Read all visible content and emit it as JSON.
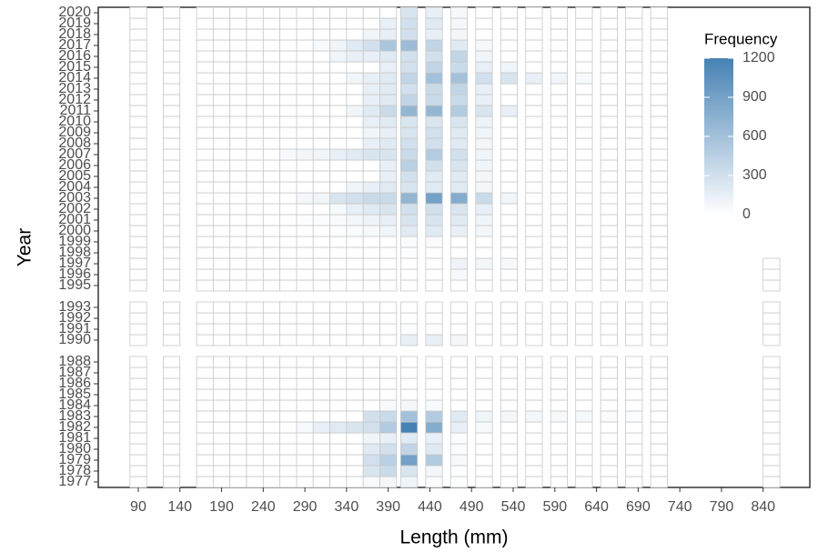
{
  "chart_data": {
    "type": "heatmap",
    "x_label": "Length (mm)",
    "y_label": "Year",
    "legend_title": "Frequency",
    "x": [
      90,
      130,
      170,
      190,
      210,
      230,
      250,
      270,
      290,
      310,
      330,
      350,
      370,
      390,
      415,
      445,
      475,
      505,
      535,
      565,
      595,
      625,
      655,
      685,
      715,
      850
    ],
    "y": [
      1977,
      1978,
      1979,
      1980,
      1981,
      1982,
      1983,
      1984,
      1985,
      1986,
      1987,
      1988,
      1990,
      1991,
      1992,
      1993,
      1995,
      1996,
      1997,
      1998,
      1999,
      2000,
      2001,
      2002,
      2003,
      2004,
      2005,
      2006,
      2007,
      2008,
      2009,
      2010,
      2011,
      2012,
      2013,
      2014,
      2015,
      2016,
      2017,
      2018,
      2019,
      2020
    ],
    "z": [
      [
        0,
        0,
        0,
        0,
        0,
        0,
        0,
        0,
        0,
        0,
        0,
        0,
        50,
        80,
        100,
        40,
        10,
        0,
        0,
        0,
        0,
        0,
        0,
        0,
        0,
        0
      ],
      [
        0,
        0,
        0,
        0,
        0,
        0,
        0,
        0,
        0,
        0,
        0,
        0,
        250,
        350,
        250,
        80,
        20,
        0,
        0,
        0,
        0,
        0,
        0,
        0,
        0,
        0
      ],
      [
        0,
        0,
        0,
        0,
        0,
        0,
        0,
        0,
        0,
        0,
        0,
        0,
        300,
        450,
        900,
        500,
        60,
        0,
        0,
        0,
        0,
        0,
        0,
        0,
        0,
        0
      ],
      [
        0,
        0,
        0,
        0,
        0,
        0,
        0,
        0,
        0,
        0,
        0,
        0,
        200,
        300,
        400,
        200,
        40,
        0,
        0,
        0,
        0,
        0,
        0,
        0,
        0,
        0
      ],
      [
        0,
        0,
        0,
        0,
        0,
        0,
        0,
        0,
        0,
        0,
        0,
        0,
        100,
        150,
        200,
        150,
        30,
        0,
        0,
        0,
        0,
        0,
        0,
        0,
        0,
        0
      ],
      [
        0,
        0,
        0,
        0,
        0,
        0,
        0,
        0,
        50,
        150,
        200,
        250,
        300,
        500,
        1200,
        800,
        150,
        50,
        0,
        0,
        0,
        0,
        0,
        0,
        0,
        0
      ],
      [
        0,
        0,
        0,
        0,
        0,
        0,
        0,
        0,
        0,
        0,
        0,
        0,
        300,
        350,
        600,
        500,
        200,
        100,
        80,
        80,
        60,
        60,
        40,
        30,
        0,
        0
      ],
      [
        0,
        0,
        0,
        0,
        0,
        0,
        0,
        0,
        0,
        0,
        0,
        0,
        0,
        50,
        80,
        50,
        0,
        0,
        0,
        0,
        0,
        0,
        0,
        0,
        0,
        0
      ],
      [
        0,
        0,
        0,
        0,
        0,
        0,
        0,
        0,
        0,
        0,
        0,
        0,
        0,
        0,
        0,
        0,
        0,
        0,
        0,
        0,
        0,
        0,
        0,
        0,
        0,
        0
      ],
      [
        0,
        0,
        0,
        0,
        0,
        0,
        0,
        0,
        0,
        0,
        0,
        0,
        0,
        0,
        0,
        0,
        0,
        0,
        0,
        0,
        0,
        0,
        0,
        0,
        0,
        0
      ],
      [
        0,
        0,
        0,
        0,
        0,
        0,
        0,
        0,
        0,
        0,
        0,
        0,
        0,
        0,
        0,
        0,
        0,
        0,
        0,
        0,
        0,
        0,
        0,
        0,
        0,
        0
      ],
      [
        0,
        0,
        0,
        0,
        0,
        0,
        0,
        0,
        0,
        0,
        0,
        0,
        0,
        0,
        0,
        0,
        0,
        0,
        0,
        0,
        0,
        0,
        0,
        0,
        0,
        0
      ],
      [
        0,
        0,
        0,
        0,
        0,
        0,
        0,
        0,
        0,
        0,
        0,
        0,
        0,
        0,
        150,
        150,
        80,
        0,
        0,
        0,
        0,
        0,
        0,
        0,
        0,
        0
      ],
      [
        0,
        0,
        0,
        0,
        0,
        0,
        0,
        0,
        0,
        0,
        0,
        0,
        0,
        0,
        20,
        20,
        0,
        0,
        0,
        0,
        0,
        0,
        0,
        0,
        0,
        0
      ],
      [
        0,
        0,
        0,
        0,
        0,
        0,
        0,
        0,
        0,
        0,
        0,
        0,
        0,
        0,
        0,
        0,
        0,
        0,
        0,
        0,
        0,
        0,
        0,
        0,
        0,
        0
      ],
      [
        0,
        0,
        0,
        0,
        0,
        0,
        0,
        0,
        0,
        0,
        0,
        0,
        0,
        0,
        0,
        0,
        0,
        0,
        0,
        0,
        0,
        0,
        0,
        0,
        0,
        0
      ],
      [
        0,
        0,
        0,
        0,
        0,
        0,
        0,
        0,
        0,
        0,
        0,
        0,
        0,
        0,
        0,
        0,
        0,
        0,
        0,
        0,
        0,
        0,
        0,
        0,
        0,
        0
      ],
      [
        0,
        0,
        0,
        0,
        0,
        0,
        0,
        0,
        0,
        0,
        0,
        0,
        0,
        0,
        0,
        0,
        60,
        0,
        0,
        0,
        0,
        0,
        0,
        0,
        0,
        0
      ],
      [
        0,
        0,
        0,
        0,
        0,
        0,
        0,
        0,
        0,
        0,
        0,
        0,
        0,
        0,
        0,
        0,
        120,
        80,
        60,
        0,
        0,
        0,
        0,
        0,
        0,
        0
      ],
      [
        0,
        0,
        0,
        0,
        0,
        0,
        0,
        0,
        0,
        0,
        0,
        0,
        0,
        0,
        20,
        0,
        0,
        0,
        0,
        0,
        0,
        0,
        0,
        0,
        0,
        null
      ],
      [
        0,
        0,
        0,
        0,
        0,
        0,
        0,
        0,
        0,
        0,
        0,
        0,
        0,
        0,
        40,
        40,
        0,
        0,
        0,
        0,
        0,
        0,
        0,
        0,
        0,
        null
      ],
      [
        0,
        0,
        0,
        0,
        0,
        0,
        0,
        0,
        0,
        0,
        20,
        40,
        60,
        100,
        200,
        200,
        150,
        80,
        0,
        0,
        0,
        0,
        0,
        0,
        0,
        null
      ],
      [
        0,
        0,
        0,
        0,
        0,
        0,
        0,
        0,
        20,
        30,
        40,
        80,
        120,
        150,
        250,
        250,
        200,
        100,
        0,
        0,
        0,
        0,
        0,
        0,
        0,
        null
      ],
      [
        0,
        0,
        0,
        0,
        0,
        0,
        0,
        0,
        0,
        0,
        60,
        150,
        200,
        250,
        300,
        300,
        250,
        150,
        0,
        0,
        0,
        0,
        0,
        0,
        0,
        null
      ],
      [
        0,
        0,
        0,
        0,
        0,
        0,
        0,
        0,
        80,
        100,
        250,
        300,
        350,
        350,
        700,
        900,
        800,
        350,
        100,
        0,
        0,
        0,
        0,
        0,
        0,
        null
      ],
      [
        0,
        0,
        0,
        0,
        0,
        0,
        0,
        0,
        0,
        0,
        0,
        100,
        150,
        200,
        250,
        200,
        200,
        80,
        0,
        0,
        0,
        0,
        0,
        0,
        0,
        null
      ],
      [
        0,
        0,
        0,
        0,
        0,
        0,
        0,
        0,
        0,
        0,
        0,
        0,
        0,
        150,
        300,
        200,
        200,
        80,
        0,
        0,
        0,
        0,
        0,
        0,
        0,
        null
      ],
      [
        0,
        0,
        0,
        0,
        0,
        0,
        0,
        0,
        0,
        0,
        0,
        0,
        0,
        150,
        450,
        300,
        250,
        100,
        0,
        0,
        0,
        0,
        0,
        0,
        0,
        null
      ],
      [
        0,
        0,
        0,
        0,
        0,
        0,
        0,
        50,
        80,
        100,
        150,
        200,
        250,
        250,
        350,
        500,
        300,
        100,
        0,
        0,
        0,
        0,
        0,
        0,
        0,
        null
      ],
      [
        0,
        0,
        0,
        0,
        0,
        0,
        0,
        0,
        0,
        0,
        0,
        0,
        150,
        200,
        300,
        300,
        200,
        80,
        0,
        0,
        0,
        0,
        0,
        0,
        0,
        null
      ],
      [
        0,
        0,
        0,
        0,
        0,
        0,
        0,
        0,
        0,
        0,
        0,
        0,
        100,
        150,
        250,
        300,
        200,
        100,
        0,
        0,
        0,
        0,
        0,
        0,
        0,
        null
      ],
      [
        0,
        0,
        0,
        0,
        0,
        0,
        0,
        0,
        0,
        0,
        0,
        0,
        150,
        200,
        250,
        250,
        250,
        120,
        0,
        0,
        0,
        0,
        0,
        0,
        0,
        null
      ],
      [
        0,
        0,
        0,
        0,
        0,
        0,
        0,
        0,
        0,
        0,
        0,
        100,
        200,
        350,
        700,
        700,
        500,
        250,
        150,
        0,
        0,
        0,
        0,
        0,
        0,
        null
      ],
      [
        0,
        0,
        0,
        0,
        0,
        0,
        0,
        0,
        0,
        0,
        0,
        0,
        150,
        200,
        400,
        350,
        350,
        150,
        0,
        0,
        0,
        0,
        0,
        0,
        0,
        null
      ],
      [
        0,
        0,
        0,
        0,
        0,
        0,
        0,
        0,
        0,
        0,
        0,
        0,
        150,
        200,
        300,
        350,
        400,
        150,
        0,
        0,
        0,
        0,
        0,
        0,
        0,
        null
      ],
      [
        0,
        0,
        0,
        0,
        0,
        0,
        0,
        0,
        0,
        0,
        0,
        100,
        150,
        200,
        400,
        600,
        600,
        300,
        250,
        150,
        100,
        50,
        0,
        0,
        0,
        null
      ],
      [
        0,
        0,
        0,
        0,
        0,
        0,
        0,
        0,
        0,
        0,
        0,
        0,
        0,
        150,
        300,
        400,
        350,
        150,
        100,
        0,
        0,
        0,
        0,
        0,
        0,
        null
      ],
      [
        0,
        0,
        0,
        0,
        0,
        0,
        0,
        0,
        0,
        0,
        100,
        150,
        150,
        200,
        300,
        300,
        400,
        100,
        0,
        0,
        0,
        0,
        0,
        0,
        0,
        null
      ],
      [
        0,
        0,
        0,
        0,
        0,
        0,
        0,
        0,
        0,
        50,
        100,
        200,
        300,
        550,
        650,
        400,
        200,
        60,
        0,
        0,
        0,
        0,
        0,
        0,
        0,
        null
      ],
      [
        0,
        0,
        0,
        0,
        0,
        0,
        0,
        0,
        0,
        0,
        0,
        0,
        100,
        150,
        300,
        150,
        80,
        0,
        0,
        0,
        0,
        0,
        0,
        0,
        0,
        null
      ],
      [
        0,
        0,
        0,
        0,
        0,
        0,
        0,
        0,
        0,
        0,
        0,
        0,
        0,
        150,
        300,
        200,
        80,
        0,
        0,
        0,
        0,
        0,
        0,
        0,
        0,
        null
      ],
      [
        0,
        0,
        0,
        0,
        0,
        0,
        0,
        0,
        0,
        0,
        0,
        0,
        0,
        0,
        250,
        150,
        60,
        0,
        0,
        0,
        0,
        0,
        0,
        0,
        0,
        null
      ]
    ],
    "cell_width": 20,
    "xlim": [
      42,
      896
    ],
    "xticks": [
      90,
      140,
      190,
      240,
      290,
      340,
      390,
      440,
      490,
      540,
      590,
      640,
      690,
      740,
      790,
      840
    ],
    "ylim": [
      1976.5,
      2020.5
    ],
    "yticks": [
      1977,
      1978,
      1979,
      1980,
      1981,
      1982,
      1983,
      1984,
      1985,
      1986,
      1987,
      1988,
      1990,
      1991,
      1992,
      1993,
      1995,
      1996,
      1997,
      1998,
      1999,
      2000,
      2001,
      2002,
      2003,
      2004,
      2005,
      2006,
      2007,
      2008,
      2009,
      2010,
      2011,
      2012,
      2013,
      2014,
      2015,
      2016,
      2017,
      2018,
      2019,
      2020
    ],
    "colors": [
      "#ffffff",
      "#4682b4"
    ],
    "zlim": [
      0,
      1200
    ],
    "zticks": [
      0,
      300,
      600,
      900,
      1200
    ]
  }
}
